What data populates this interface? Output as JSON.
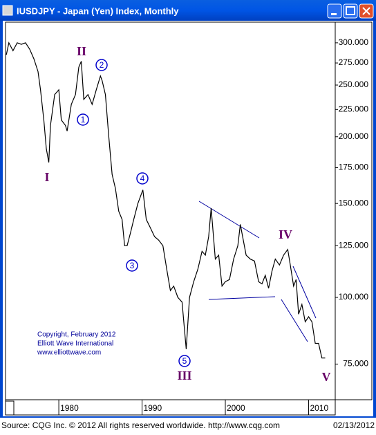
{
  "window": {
    "title": "IUSDJPY - Japan (Yen) Index, Monthly"
  },
  "chart_data": {
    "type": "line",
    "yscale": "log",
    "grid": false,
    "yaxis_side": "right",
    "color": "#000000",
    "x": [
      1973.7,
      1974.0,
      1974.5,
      1975.0,
      1975.5,
      1976.0,
      1976.5,
      1977.0,
      1977.5,
      1977.8,
      1978.2,
      1978.5,
      1978.8,
      1979.0,
      1979.5,
      1980.0,
      1980.3,
      1980.8,
      1981.0,
      1981.5,
      1982.0,
      1982.4,
      1982.7,
      1983.0,
      1983.5,
      1984.0,
      1984.5,
      1985.0,
      1985.2,
      1985.6,
      1986.0,
      1986.4,
      1986.8,
      1987.2,
      1987.6,
      1987.9,
      1988.2,
      1988.6,
      1989.0,
      1989.5,
      1990.1,
      1990.5,
      1991.0,
      1991.5,
      1992.0,
      1992.5,
      1993.0,
      1993.4,
      1993.8,
      1994.3,
      1994.8,
      1995.3,
      1995.7,
      1996.2,
      1996.7,
      1997.2,
      1997.6,
      1998.0,
      1998.3,
      1998.8,
      1999.2,
      1999.6,
      2000.0,
      2000.5,
      2001.0,
      2001.5,
      2001.8,
      2002.5,
      2003.0,
      2003.5,
      2004.0,
      2004.4,
      2004.8,
      2005.2,
      2005.6,
      2006.0,
      2006.5,
      2007.0,
      2007.5,
      2007.8,
      2008.2,
      2008.5,
      2008.8,
      2009.2,
      2009.6,
      2010.0,
      2010.4,
      2010.8,
      2011.2,
      2011.6,
      2012.0
    ],
    "values": [
      285,
      300,
      290,
      300,
      298,
      300,
      292,
      280,
      265,
      245,
      215,
      190,
      179,
      210,
      240,
      245,
      215,
      210,
      205,
      230,
      240,
      270,
      277,
      235,
      240,
      230,
      245,
      260,
      255,
      240,
      200,
      170,
      160,
      145,
      140,
      125,
      125,
      132,
      140,
      150,
      159,
      140,
      135,
      130,
      128,
      125,
      112,
      103,
      105,
      100,
      98,
      80,
      100,
      107,
      113,
      122,
      120,
      130,
      147,
      118,
      120,
      105,
      107,
      108,
      118,
      125,
      137,
      120,
      118,
      117,
      107,
      106,
      110,
      104,
      112,
      118,
      115,
      120,
      123,
      115,
      105,
      108,
      93,
      97,
      90,
      92,
      90,
      82,
      82,
      77,
      77
    ],
    "xlim": [
      1973.6,
      2013.2
    ],
    "ylim": [
      64.3,
      328
    ],
    "xticks": [
      1980,
      1990,
      2000,
      2010
    ],
    "yticks": [
      {
        "value": 300,
        "label": "300.000"
      },
      {
        "value": 275,
        "label": "275.000"
      },
      {
        "value": 250,
        "label": "250.000"
      },
      {
        "value": 225,
        "label": "225.000"
      },
      {
        "value": 200,
        "label": "200.000"
      },
      {
        "value": 175,
        "label": "175.000"
      },
      {
        "value": 150,
        "label": "150.000"
      },
      {
        "value": 125,
        "label": "125.000"
      },
      {
        "value": 100,
        "label": "100.000"
      },
      {
        "value": 75,
        "label": "75.000"
      }
    ],
    "wave_labels": [
      "I",
      "II",
      "III",
      "IV",
      "V"
    ],
    "minor_wave_labels": [
      "1",
      "2",
      "3",
      "4",
      "5"
    ],
    "annotations": [
      "Copyright, February 2012",
      "Elliott Wave International",
      "www.elliottwave.com"
    ]
  },
  "footer": {
    "source": "Source: CQG Inc. © 2012 All rights reserved worldwide. http://www.cqg.com",
    "date": "02/13/2012"
  }
}
